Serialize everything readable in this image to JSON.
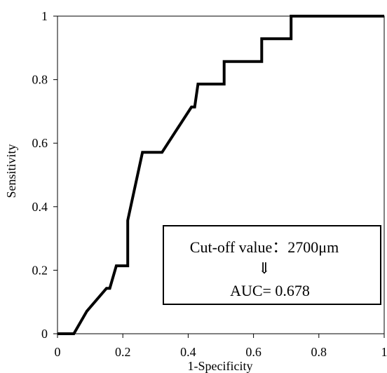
{
  "chart_data": {
    "type": "line",
    "title": "",
    "xlabel": "1-Specificity",
    "ylabel": "Sensitivity",
    "xlim": [
      0,
      1
    ],
    "ylim": [
      0,
      1
    ],
    "xticks": [
      0,
      0.2,
      0.4,
      0.6,
      0.8,
      1
    ],
    "yticks": [
      0,
      0.2,
      0.4,
      0.6,
      0.8,
      1
    ],
    "xtick_labels": [
      "0",
      "0.2",
      "0.4",
      "0.6",
      "0.8",
      "1"
    ],
    "ytick_labels": [
      "0",
      "0.2",
      "0.4",
      "0.6",
      "0.8",
      "1"
    ],
    "grid": false,
    "series": [
      {
        "color": "#000000",
        "points": [
          {
            "x": 0.0,
            "y": 0.0
          },
          {
            "x": 0.05,
            "y": 0.0
          },
          {
            "x": 0.09,
            "y": 0.071
          },
          {
            "x": 0.15,
            "y": 0.143
          },
          {
            "x": 0.16,
            "y": 0.143
          },
          {
            "x": 0.18,
            "y": 0.214
          },
          {
            "x": 0.215,
            "y": 0.214
          },
          {
            "x": 0.215,
            "y": 0.357
          },
          {
            "x": 0.26,
            "y": 0.571
          },
          {
            "x": 0.32,
            "y": 0.571
          },
          {
            "x": 0.41,
            "y": 0.714
          },
          {
            "x": 0.42,
            "y": 0.714
          },
          {
            "x": 0.43,
            "y": 0.786
          },
          {
            "x": 0.51,
            "y": 0.786
          },
          {
            "x": 0.51,
            "y": 0.857
          },
          {
            "x": 0.625,
            "y": 0.857
          },
          {
            "x": 0.625,
            "y": 0.929
          },
          {
            "x": 0.715,
            "y": 0.929
          },
          {
            "x": 0.715,
            "y": 1.0
          },
          {
            "x": 1.0,
            "y": 1.0
          }
        ]
      }
    ],
    "annotation": {
      "lines": [
        "Cut-off value：2700μm",
        "⇓",
        "AUC= 0.678"
      ]
    }
  }
}
